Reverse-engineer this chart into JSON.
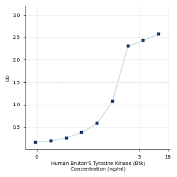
{
  "x": [
    0.0469,
    0.0938,
    0.1875,
    0.375,
    0.75,
    1.5,
    3,
    6,
    12
  ],
  "y": [
    0.16,
    0.19,
    0.26,
    0.38,
    0.58,
    1.08,
    2.3,
    2.43,
    2.57
  ],
  "xlabel_line1": "Human Bruton'S Tyrosine Kinase (Btk)",
  "xlabel_line2": "Concentration (ng/ml)",
  "ylabel": "OD",
  "xlim": [
    0.03,
    20
  ],
  "ylim": [
    0.0,
    3.2
  ],
  "yticks": [
    0.5,
    1.0,
    1.5,
    2.0,
    2.5,
    3.0
  ],
  "xtick_values": [
    0.0469,
    5,
    18
  ],
  "xtick_labels": [
    "0",
    "5",
    "18"
  ],
  "line_color": "#b8d4e8",
  "marker_color": "#1a3464",
  "marker_size": 3.5,
  "grid_color": "#d8d8d8",
  "bg_color": "#ffffff",
  "font_size_label": 5.0,
  "font_size_tick": 5.0
}
